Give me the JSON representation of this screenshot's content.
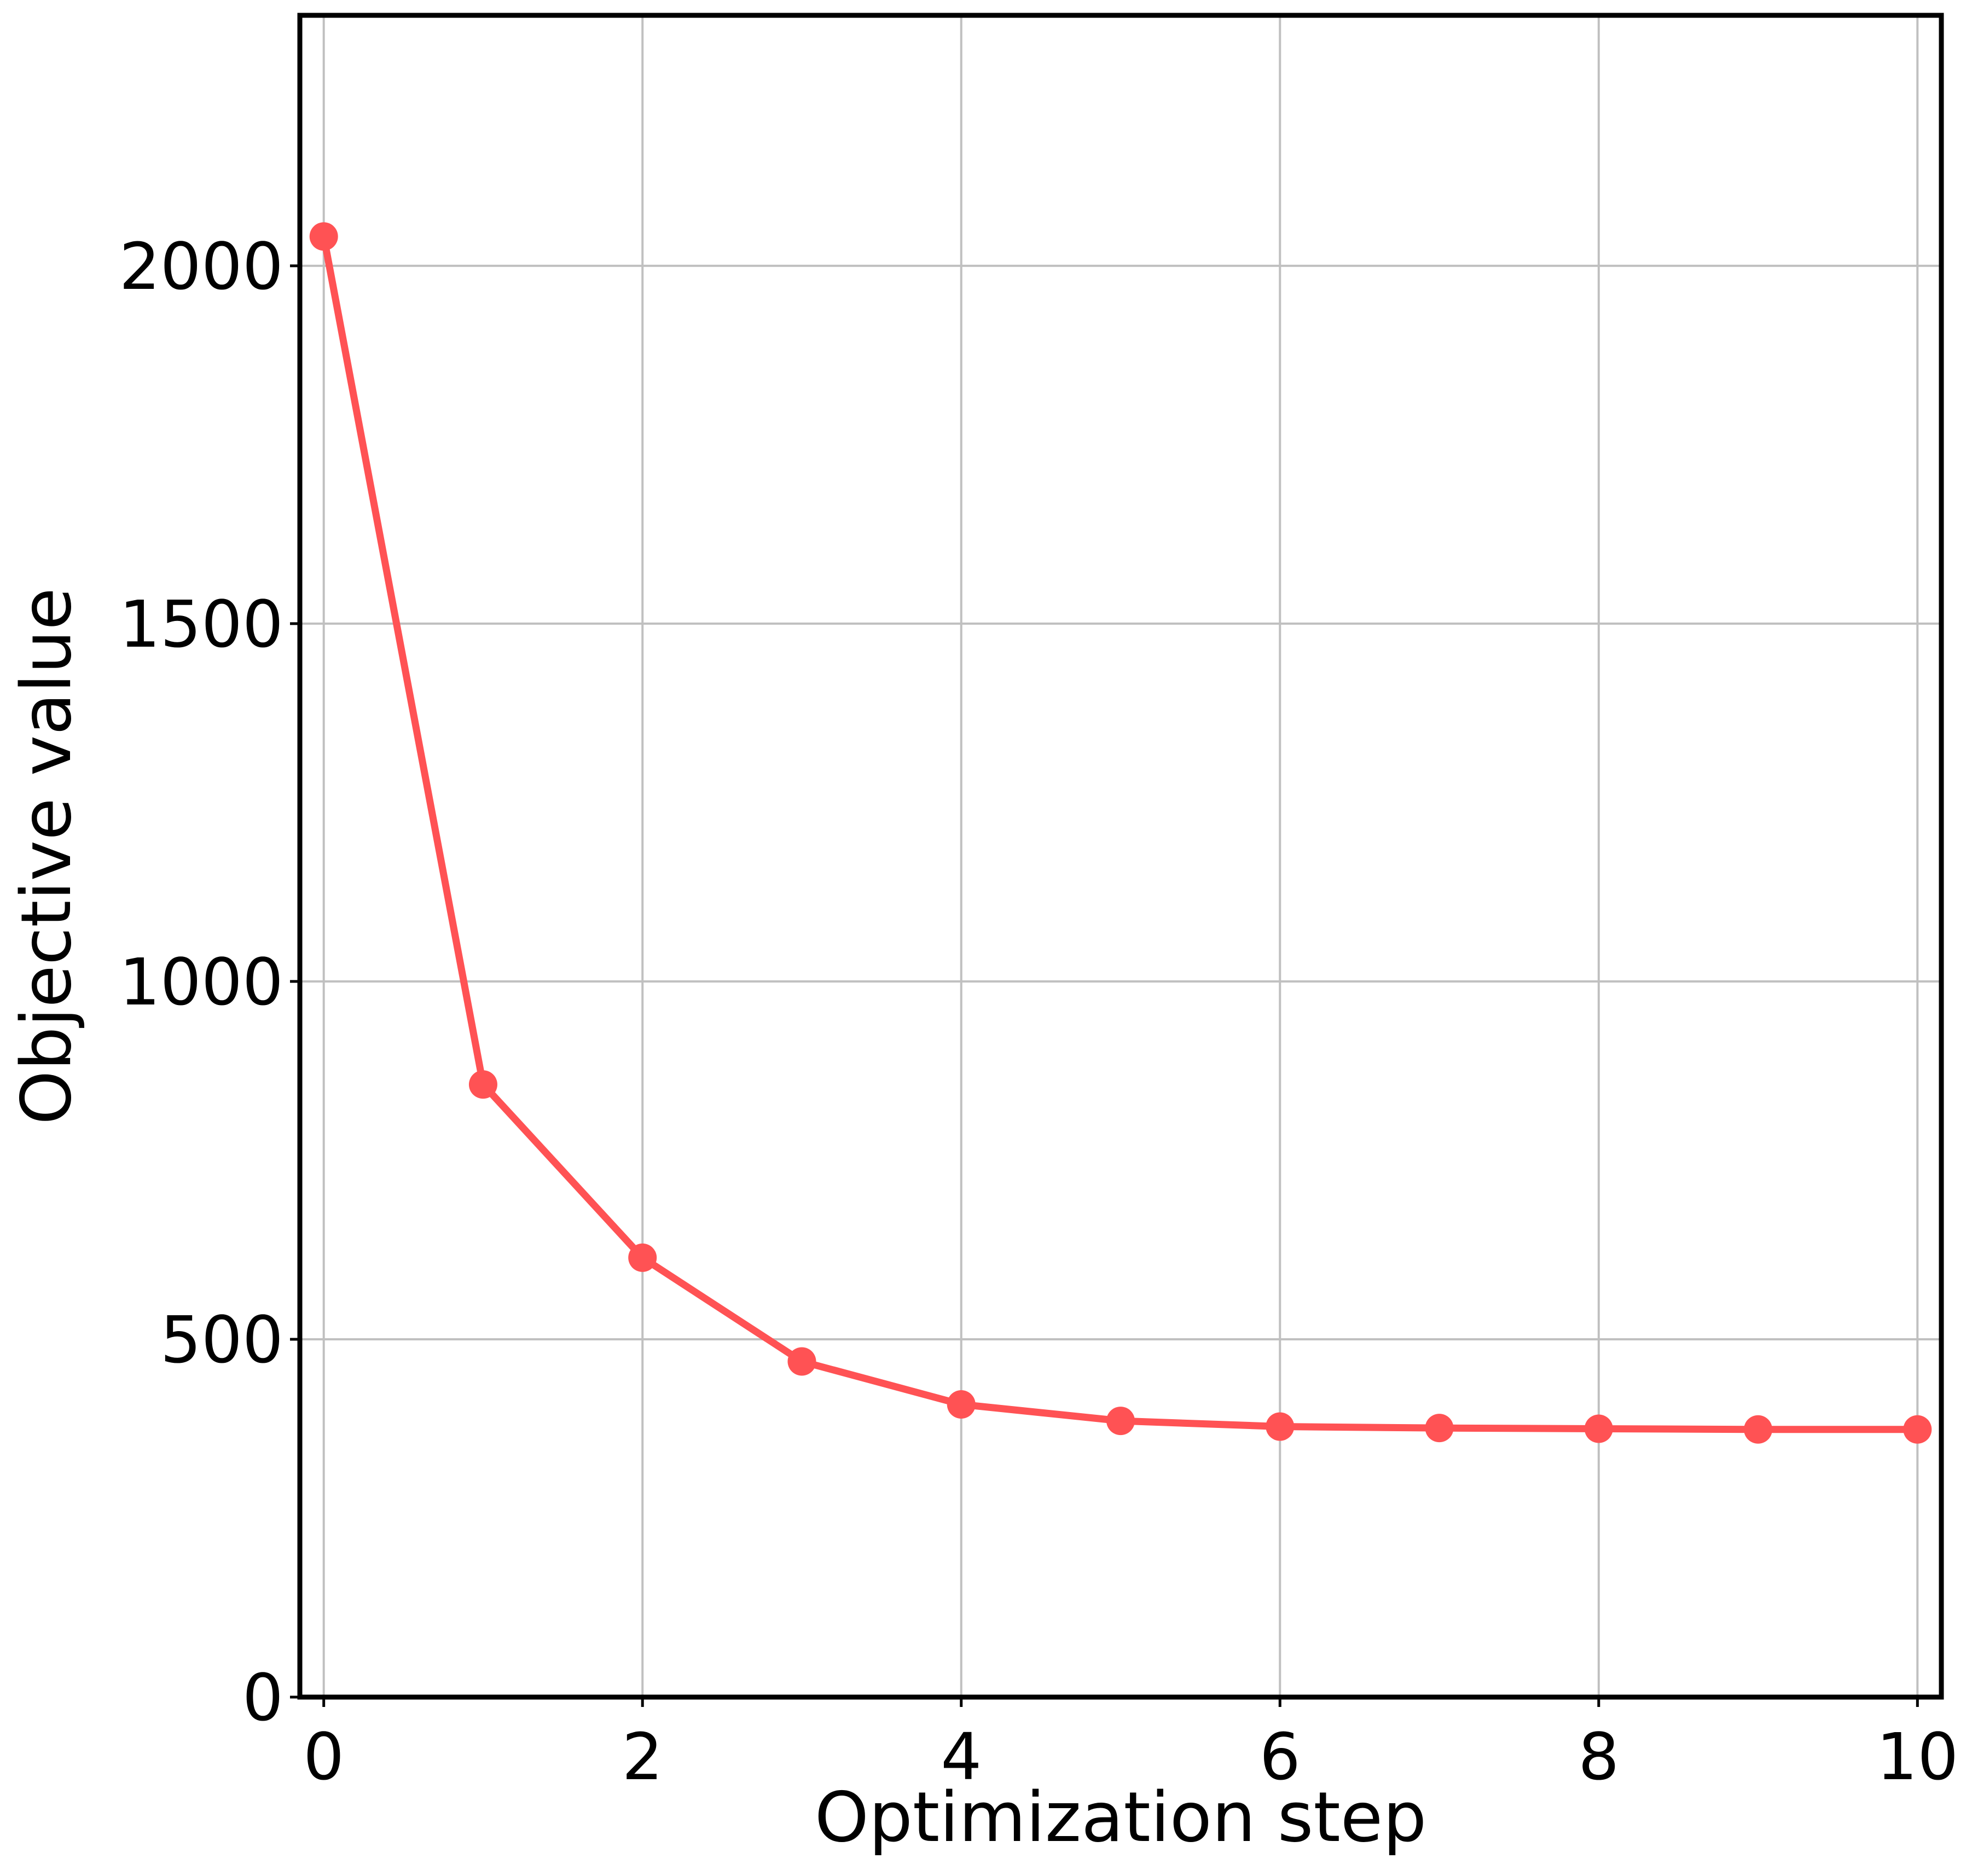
{
  "chart_data": {
    "type": "line",
    "title": "",
    "xlabel": "Optimization step",
    "ylabel": "Objective value",
    "xlim": [
      -0.15,
      10.15
    ],
    "ylim": [
      0,
      2350
    ],
    "x_ticks": [
      0,
      2,
      4,
      6,
      8,
      10
    ],
    "x_tick_labels": [
      "0",
      "2",
      "4",
      "6",
      "8",
      "10"
    ],
    "y_ticks": [
      0,
      500,
      1000,
      1500,
      2000
    ],
    "y_tick_labels": [
      "0",
      "500",
      "1000",
      "1500",
      "2000"
    ],
    "grid": true,
    "legend": "none",
    "series": [
      {
        "color": "#ff5254",
        "marker": "circle",
        "x": [
          0,
          1,
          2,
          3,
          4,
          5,
          6,
          7,
          8,
          9,
          10
        ],
        "y": [
          2041,
          856,
          614,
          469,
          409,
          386,
          378,
          376,
          375,
          374,
          374
        ]
      }
    ]
  }
}
